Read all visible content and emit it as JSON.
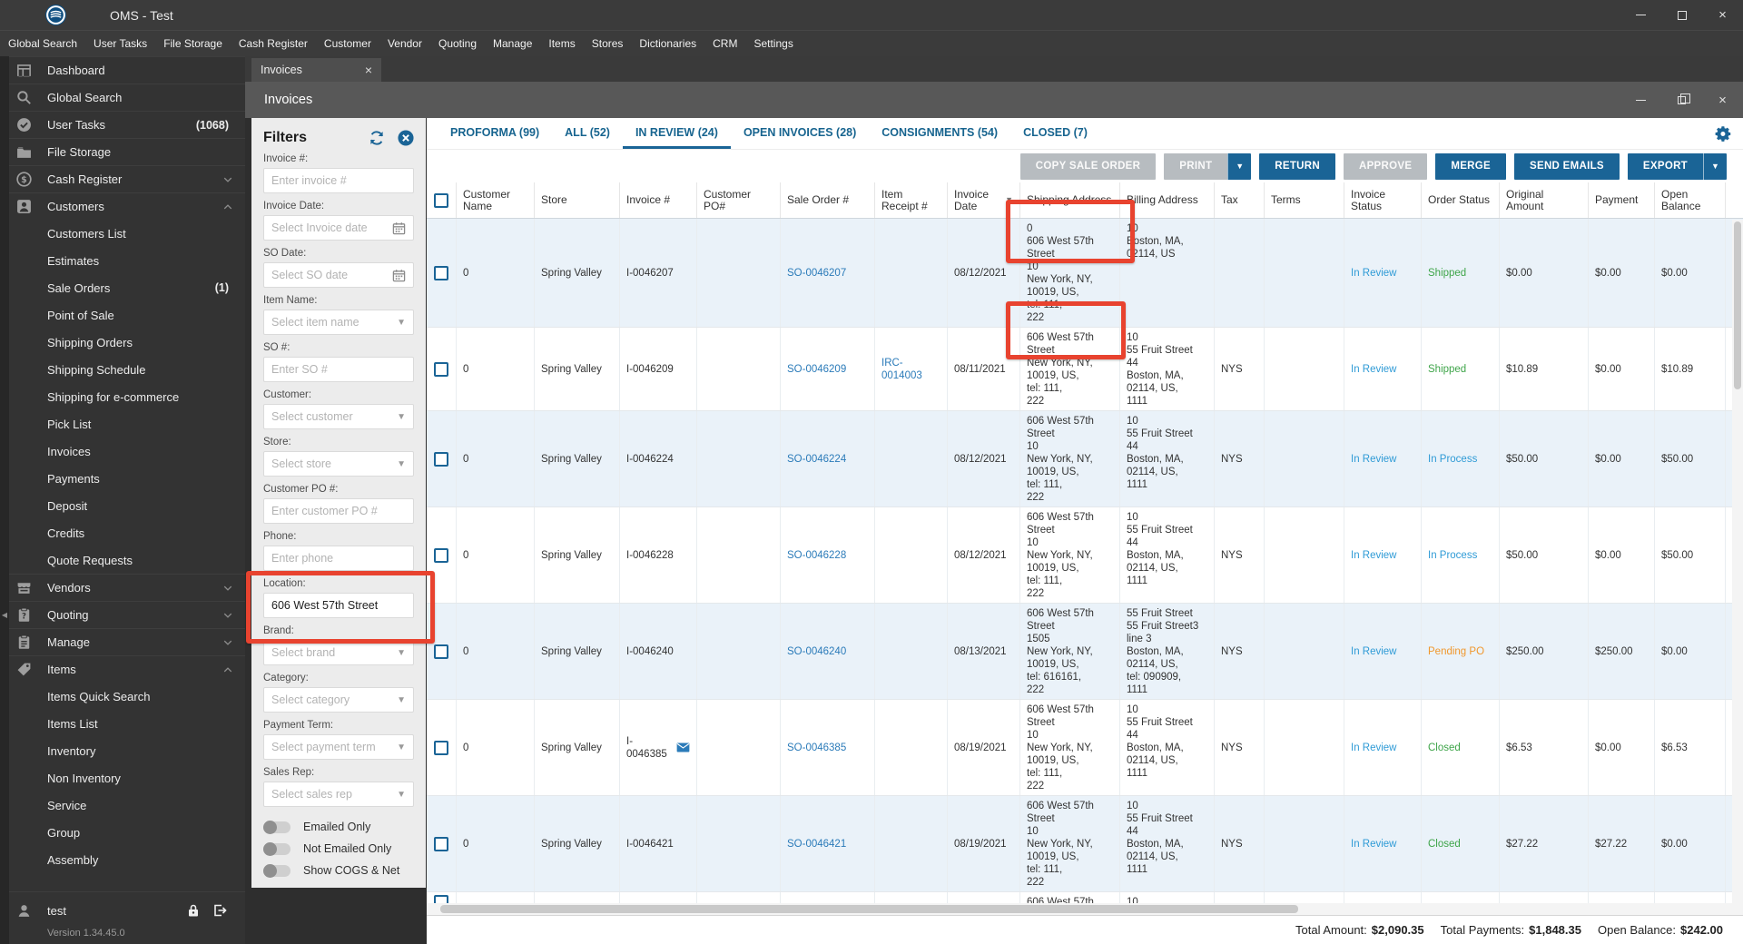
{
  "window": {
    "title": "OMS - Test"
  },
  "menu_bar": {
    "items": [
      "Global Search",
      "User Tasks",
      "File Storage",
      "Cash Register",
      "Customer",
      "Vendor",
      "Quoting",
      "Manage",
      "Items",
      "Stores",
      "Dictionaries",
      "CRM",
      "Settings"
    ]
  },
  "sidebar": {
    "items": [
      {
        "label": "Dashboard",
        "icon": "dashboard-icon"
      },
      {
        "label": "Global Search",
        "icon": "search-icon"
      },
      {
        "label": "User Tasks",
        "icon": "tasks-icon",
        "badge": "(1068)"
      },
      {
        "label": "File Storage",
        "icon": "folder-icon"
      },
      {
        "label": "Cash Register",
        "icon": "cash-register-icon",
        "chevron": "down"
      },
      {
        "label": "Customers",
        "icon": "customers-icon",
        "chevron": "up"
      },
      {
        "label": "Customers List",
        "indent": true
      },
      {
        "label": "Estimates",
        "indent": true
      },
      {
        "label": "Sale Orders",
        "indent": true,
        "badge": "(1)"
      },
      {
        "label": "Point of Sale",
        "indent": true
      },
      {
        "label": "Shipping Orders",
        "indent": true
      },
      {
        "label": "Shipping Schedule",
        "indent": true
      },
      {
        "label": "Shipping for e-commerce",
        "indent": true
      },
      {
        "label": "Pick List",
        "indent": true
      },
      {
        "label": "Invoices",
        "indent": true
      },
      {
        "label": "Payments",
        "indent": true
      },
      {
        "label": "Deposit",
        "indent": true
      },
      {
        "label": "Credits",
        "indent": true
      },
      {
        "label": "Quote Requests",
        "indent": true
      },
      {
        "label": "Vendors",
        "icon": "vendors-icon",
        "chevron": "down"
      },
      {
        "label": "Quoting",
        "icon": "quoting-icon",
        "chevron": "down"
      },
      {
        "label": "Manage",
        "icon": "manage-icon",
        "chevron": "down"
      },
      {
        "label": "Items",
        "icon": "items-icon",
        "chevron": "up"
      },
      {
        "label": "Items Quick Search",
        "indent": true
      },
      {
        "label": "Items List",
        "indent": true
      },
      {
        "label": "Inventory",
        "indent": true
      },
      {
        "label": "Non Inventory",
        "indent": true
      },
      {
        "label": "Service",
        "indent": true
      },
      {
        "label": "Group",
        "indent": true
      },
      {
        "label": "Assembly",
        "indent": true
      }
    ],
    "user": {
      "name": "test"
    },
    "version": "Version 1.34.45.0"
  },
  "document_tab": {
    "label": "Invoices"
  },
  "content_header": {
    "title": "Invoices"
  },
  "filters": {
    "title": "Filters",
    "fields": [
      {
        "label": "Invoice #:",
        "placeholder": "Enter invoice #",
        "type": "text"
      },
      {
        "label": "Invoice Date:",
        "placeholder": "Select Invoice date",
        "type": "date"
      },
      {
        "label": "SO Date:",
        "placeholder": "Select SO date",
        "type": "date"
      },
      {
        "label": "Item Name:",
        "placeholder": "Select item name",
        "type": "select"
      },
      {
        "label": "SO #:",
        "placeholder": "Enter SO #",
        "type": "text"
      },
      {
        "label": "Customer:",
        "placeholder": "Select customer",
        "type": "select"
      },
      {
        "label": "Store:",
        "placeholder": "Select store",
        "type": "select"
      },
      {
        "label": "Customer PO #:",
        "placeholder": "Enter customer PO #",
        "type": "text"
      },
      {
        "label": "Phone:",
        "placeholder": "Enter phone",
        "type": "text"
      },
      {
        "label": "Location:",
        "placeholder": "",
        "value": "606 West 57th Street",
        "type": "text"
      },
      {
        "label": "Brand:",
        "placeholder": "Select brand",
        "type": "select"
      },
      {
        "label": "Category:",
        "placeholder": "Select category",
        "type": "select"
      },
      {
        "label": "Payment Term:",
        "placeholder": "Select payment term",
        "type": "select"
      },
      {
        "label": "Sales Rep:",
        "placeholder": "Select sales rep",
        "type": "select"
      }
    ],
    "toggles": [
      {
        "label": "Emailed Only",
        "on": false
      },
      {
        "label": "Not Emailed Only",
        "on": false
      },
      {
        "label": "Show COGS & Net",
        "on": false
      }
    ]
  },
  "tabs": [
    {
      "label": "PROFORMA (99)"
    },
    {
      "label": "ALL (52)"
    },
    {
      "label": "IN REVIEW (24)",
      "active": true
    },
    {
      "label": "OPEN INVOICES (28)"
    },
    {
      "label": "CONSIGNMENTS (54)"
    },
    {
      "label": "CLOSED (7)"
    }
  ],
  "toolbar": {
    "buttons": [
      {
        "label": "COPY SALE ORDER",
        "style": "disabled"
      },
      {
        "label": "PRINT",
        "style": "disabled",
        "split": true
      },
      {
        "label": "RETURN",
        "style": "primary"
      },
      {
        "label": "APPROVE",
        "style": "disabled"
      },
      {
        "label": "MERGE",
        "style": "primary"
      },
      {
        "label": "SEND EMAILS",
        "style": "primary"
      },
      {
        "label": "EXPORT",
        "style": "primary",
        "split": true
      }
    ]
  },
  "table": {
    "columns": [
      {
        "key": "select",
        "label": "",
        "type": "checkbox"
      },
      {
        "key": "customer_name",
        "label": "Customer Name",
        "type": "text"
      },
      {
        "key": "store",
        "label": "Store",
        "type": "text"
      },
      {
        "key": "invoice",
        "label": "Invoice #",
        "type": "invoice"
      },
      {
        "key": "customer_po",
        "label": "Customer PO#",
        "type": "text"
      },
      {
        "key": "sale_order",
        "label": "Sale Order #",
        "type": "link"
      },
      {
        "key": "item_receipt",
        "label": "Item Receipt #",
        "type": "link"
      },
      {
        "key": "invoice_date",
        "label": "Invoice Date",
        "type": "text",
        "sortable": true
      },
      {
        "key": "shipping_address",
        "label": "Shipping Address",
        "type": "address"
      },
      {
        "key": "billing_address",
        "label": "Billing Address",
        "type": "address"
      },
      {
        "key": "tax",
        "label": "Tax",
        "type": "text"
      },
      {
        "key": "terms",
        "label": "Terms",
        "type": "text"
      },
      {
        "key": "invoice_status",
        "label": "Invoice Status",
        "type": "status"
      },
      {
        "key": "order_status",
        "label": "Order Status",
        "type": "status"
      },
      {
        "key": "original_amount",
        "label": "Original Amount",
        "type": "text"
      },
      {
        "key": "payment",
        "label": "Payment",
        "type": "text"
      },
      {
        "key": "open_balance",
        "label": "Open Balance",
        "type": "text"
      }
    ],
    "rows": [
      {
        "alt": true,
        "customer_name": "0",
        "store": "Spring Valley",
        "invoice": "I-0046207",
        "customer_po": "",
        "sale_order": "SO-0046207",
        "item_receipt": "",
        "invoice_date": "08/12/2021",
        "shipping_address": [
          "0",
          "606 West 57th",
          "Street",
          "10",
          "New York, NY,",
          "10019, US,",
          "tel: 111,",
          "222"
        ],
        "billing_address": [
          "10",
          "Boston, MA,",
          "02114, US"
        ],
        "tax": "",
        "terms": "",
        "invoice_status": "In Review",
        "order_status": "Shipped",
        "original_amount": "$0.00",
        "payment": "$0.00",
        "open_balance": "$0.00"
      },
      {
        "alt": false,
        "customer_name": "0",
        "store": "Spring Valley",
        "invoice": "I-0046209",
        "customer_po": "",
        "sale_order": "SO-0046209",
        "item_receipt": "IRC-0014003",
        "invoice_date": "08/11/2021",
        "shipping_address": [
          "606 West 57th",
          "Street",
          "New York, NY,",
          "10019, US,",
          "tel: 111,",
          "222"
        ],
        "billing_address": [
          "10",
          "55 Fruit Street",
          "44",
          "Boston, MA,",
          "02114, US,",
          "1111"
        ],
        "tax": "NYS",
        "terms": "",
        "invoice_status": "In Review",
        "order_status": "Shipped",
        "original_amount": "$10.89",
        "payment": "$0.00",
        "open_balance": "$10.89"
      },
      {
        "alt": true,
        "customer_name": "0",
        "store": "Spring Valley",
        "invoice": "I-0046224",
        "customer_po": "",
        "sale_order": "SO-0046224",
        "item_receipt": "",
        "invoice_date": "08/12/2021",
        "shipping_address": [
          "606 West 57th",
          "Street",
          "10",
          "New York, NY,",
          "10019, US,",
          "tel: 111,",
          "222"
        ],
        "billing_address": [
          "10",
          "55 Fruit Street",
          "44",
          "Boston, MA,",
          "02114, US,",
          "1111"
        ],
        "tax": "NYS",
        "terms": "",
        "invoice_status": "In Review",
        "order_status": "In Process",
        "original_amount": "$50.00",
        "payment": "$0.00",
        "open_balance": "$50.00"
      },
      {
        "alt": false,
        "customer_name": "0",
        "store": "Spring Valley",
        "invoice": "I-0046228",
        "customer_po": "",
        "sale_order": "SO-0046228",
        "item_receipt": "",
        "invoice_date": "08/12/2021",
        "shipping_address": [
          "606 West 57th",
          "Street",
          "10",
          "New York, NY,",
          "10019, US,",
          "tel: 111,",
          "222"
        ],
        "billing_address": [
          "10",
          "55 Fruit Street",
          "44",
          "Boston, MA,",
          "02114, US,",
          "1111"
        ],
        "tax": "NYS",
        "terms": "",
        "invoice_status": "In Review",
        "order_status": "In Process",
        "original_amount": "$50.00",
        "payment": "$0.00",
        "open_balance": "$50.00"
      },
      {
        "alt": true,
        "customer_name": "0",
        "store": "Spring Valley",
        "invoice": "I-0046240",
        "customer_po": "",
        "sale_order": "SO-0046240",
        "item_receipt": "",
        "invoice_date": "08/13/2021",
        "shipping_address": [
          "606 West 57th",
          "Street",
          "1505",
          "New York, NY,",
          "10019, US,",
          "tel: 616161,",
          "222"
        ],
        "billing_address": [
          "55 Fruit Street",
          "55 Fruit Street3",
          "line 3",
          "Boston, MA,",
          "02114, US,",
          "tel: 090909,",
          "1111"
        ],
        "tax": "NYS",
        "terms": "",
        "invoice_status": "In Review",
        "order_status": "Pending PO",
        "original_amount": "$250.00",
        "payment": "$250.00",
        "open_balance": "$0.00"
      },
      {
        "alt": false,
        "customer_name": "0",
        "store": "Spring Valley",
        "invoice": "I-0046385",
        "email_icon": true,
        "customer_po": "",
        "sale_order": "SO-0046385",
        "item_receipt": "",
        "invoice_date": "08/19/2021",
        "shipping_address": [
          "606 West 57th",
          "Street",
          "10",
          "New York, NY,",
          "10019, US,",
          "tel: 111,",
          "222"
        ],
        "billing_address": [
          "10",
          "55 Fruit Street",
          "44",
          "Boston, MA,",
          "02114, US,",
          "1111"
        ],
        "tax": "NYS",
        "terms": "",
        "invoice_status": "In Review",
        "order_status": "Closed",
        "original_amount": "$6.53",
        "payment": "$0.00",
        "open_balance": "$6.53"
      },
      {
        "alt": true,
        "customer_name": "0",
        "store": "Spring Valley",
        "invoice": "I-0046421",
        "customer_po": "",
        "sale_order": "SO-0046421",
        "item_receipt": "",
        "invoice_date": "08/19/2021",
        "shipping_address": [
          "606 West 57th",
          "Street",
          "10",
          "New York, NY,",
          "10019, US,",
          "tel: 111,",
          "222"
        ],
        "billing_address": [
          "10",
          "55 Fruit Street",
          "44",
          "Boston, MA,",
          "02114, US,",
          "1111"
        ],
        "tax": "NYS",
        "terms": "",
        "invoice_status": "In Review",
        "order_status": "Closed",
        "original_amount": "$27.22",
        "payment": "$27.22",
        "open_balance": "$0.00"
      },
      {
        "alt": false,
        "customer_name": "",
        "store": "",
        "invoice": "",
        "customer_po": "",
        "sale_order": "",
        "item_receipt": "",
        "invoice_date": "",
        "shipping_address": [
          "606 West 57th"
        ],
        "billing_address": [
          "10"
        ],
        "tax": "",
        "terms": "",
        "invoice_status": "",
        "order_status": "",
        "original_amount": "",
        "payment": "",
        "open_balance": ""
      }
    ]
  },
  "footer": {
    "total_amount_label": "Total Amount:",
    "total_amount": "$2,090.35",
    "total_payments_label": "Total Payments:",
    "total_payments": "$1,848.35",
    "open_balance_label": "Open Balance:",
    "open_balance": "$242.00"
  },
  "colors": {
    "accent_blue": "#1a6496",
    "link_blue": "#2b7bb9",
    "annotation_red": "#e8432f",
    "row_alt": "#eaf2f9",
    "status": {
      "In Review": "#2f9bd6",
      "Shipped": "#3fa54a",
      "In Process": "#2f9bd6",
      "Pending PO": "#f0982e",
      "Closed": "#3fa54a"
    }
  }
}
